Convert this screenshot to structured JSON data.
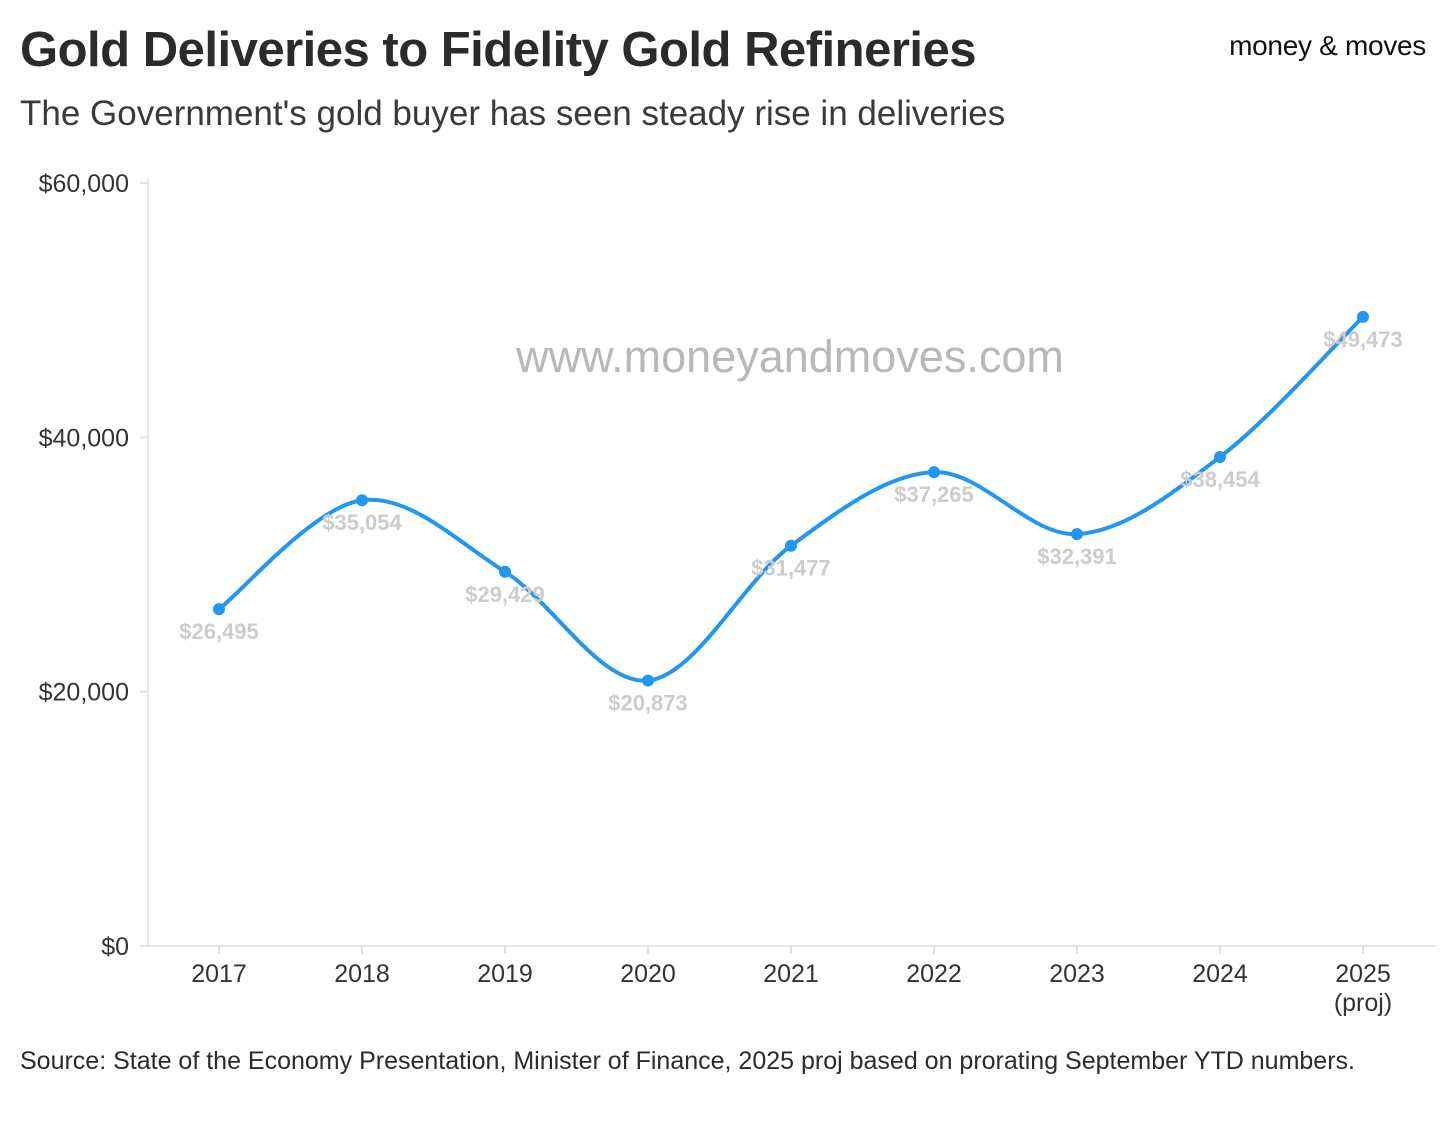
{
  "header": {
    "title": "Gold Deliveries to Fidelity Gold Refineries",
    "subtitle": "The Government's gold buyer has seen steady rise in deliveries"
  },
  "logo": {
    "text": "money & moves"
  },
  "watermark": "www.moneyandmoves.com",
  "footer": {
    "source": "Source: State of the Economy Presentation, Minister of Finance, 2025 proj based on prorating September YTD numbers."
  },
  "chart_data": {
    "type": "line",
    "title": "Gold Deliveries to Fidelity Gold Refineries",
    "subtitle": "The Government's gold buyer has seen steady rise in deliveries",
    "xlabel": "",
    "ylabel": "",
    "categories": [
      "2017",
      "2018",
      "2019",
      "2020",
      "2021",
      "2022",
      "2023",
      "2024",
      "2025"
    ],
    "category_sublabels": [
      "",
      "",
      "",
      "",
      "",
      "",
      "",
      "",
      "(proj)"
    ],
    "values": [
      26495,
      35054,
      29429,
      20873,
      31477,
      37265,
      32391,
      38454,
      49473
    ],
    "data_labels": [
      "$26,495",
      "$35,054",
      "$29,429",
      "$20,873",
      "$31,477",
      "$37,265",
      "$32,391",
      "$38,454",
      "$49,473"
    ],
    "label_positions": [
      "below",
      "below",
      "below",
      "below",
      "below",
      "below",
      "below",
      "below",
      "below"
    ],
    "ylim": [
      0,
      60000
    ],
    "yticks": [
      0,
      20000,
      40000,
      60000
    ],
    "ytick_labels": [
      "$0",
      "$20,000",
      "$40,000",
      "$60,000"
    ],
    "grid": false,
    "line_color": "#2196f3",
    "label_color": "#cccccc",
    "smooth": true
  }
}
